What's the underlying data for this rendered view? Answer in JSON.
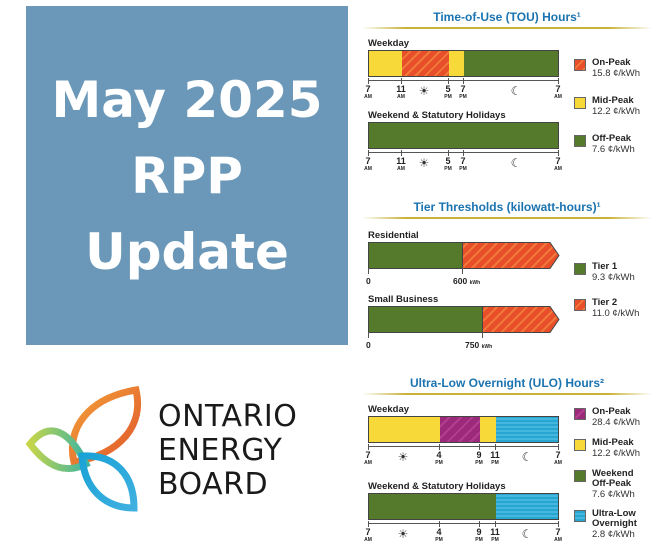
{
  "title_panel": {
    "line1": "May 2025",
    "line2": "RPP",
    "line3": "Update"
  },
  "logo": {
    "line1": "ONTARIO",
    "line2": "ENERGY",
    "line3": "BOARD"
  },
  "tou": {
    "title": "Time-of-Use (TOU) Hours¹",
    "weekday_label": "Weekday",
    "weekend_label": "Weekend & Statutory Holidays",
    "ticks": [
      {
        "num": "7",
        "ampm": "AM"
      },
      {
        "num": "11",
        "ampm": "AM"
      },
      {
        "num": "5",
        "ampm": "PM"
      },
      {
        "num": "7",
        "ampm": "PM"
      },
      {
        "num": "7",
        "ampm": "AM"
      }
    ],
    "legend": [
      {
        "name": "On-Peak",
        "price": "15.8 ¢/kWh",
        "color": "#e84e2a"
      },
      {
        "name": "Mid-Peak",
        "price": "12.2 ¢/kWh",
        "color": "#f7d93a"
      },
      {
        "name": "Off-Peak",
        "price": "7.6 ¢/kWh",
        "color": "#557a2c"
      }
    ]
  },
  "tiers": {
    "title": "Tier Thresholds (kilowatt-hours)¹",
    "residential_label": "Residential",
    "residential_zero": "0",
    "residential_threshold": "600",
    "business_label": "Small Business",
    "business_zero": "0",
    "business_threshold": "750",
    "unit": "kWh",
    "legend": [
      {
        "name": "Tier 1",
        "price": "9.3 ¢/kWh",
        "color": "#557a2c"
      },
      {
        "name": "Tier 2",
        "price": "11.0 ¢/kWh",
        "color": "#e84e2a"
      }
    ]
  },
  "ulo": {
    "title": "Ultra-Low Overnight (ULO) Hours²",
    "weekday_label": "Weekday",
    "weekend_label": "Weekend & Statutory Holidays",
    "ticks": [
      {
        "num": "7",
        "ampm": "AM"
      },
      {
        "num": "4",
        "ampm": "PM"
      },
      {
        "num": "9",
        "ampm": "PM"
      },
      {
        "num": "11",
        "ampm": "PM"
      },
      {
        "num": "7",
        "ampm": "AM"
      }
    ],
    "legend": [
      {
        "name": "On-Peak",
        "price": "28.4 ¢/kWh",
        "color": "#9b2a7b"
      },
      {
        "name": "Mid-Peak",
        "price": "12.2 ¢/kWh",
        "color": "#f7d93a"
      },
      {
        "name": "Weekend Off-Peak",
        "price": "7.6 ¢/kWh",
        "color": "#557a2c"
      },
      {
        "name": "Ultra-Low Overnight",
        "price": "2.8 ¢/kWh",
        "color": "#28a6d2"
      }
    ]
  }
}
